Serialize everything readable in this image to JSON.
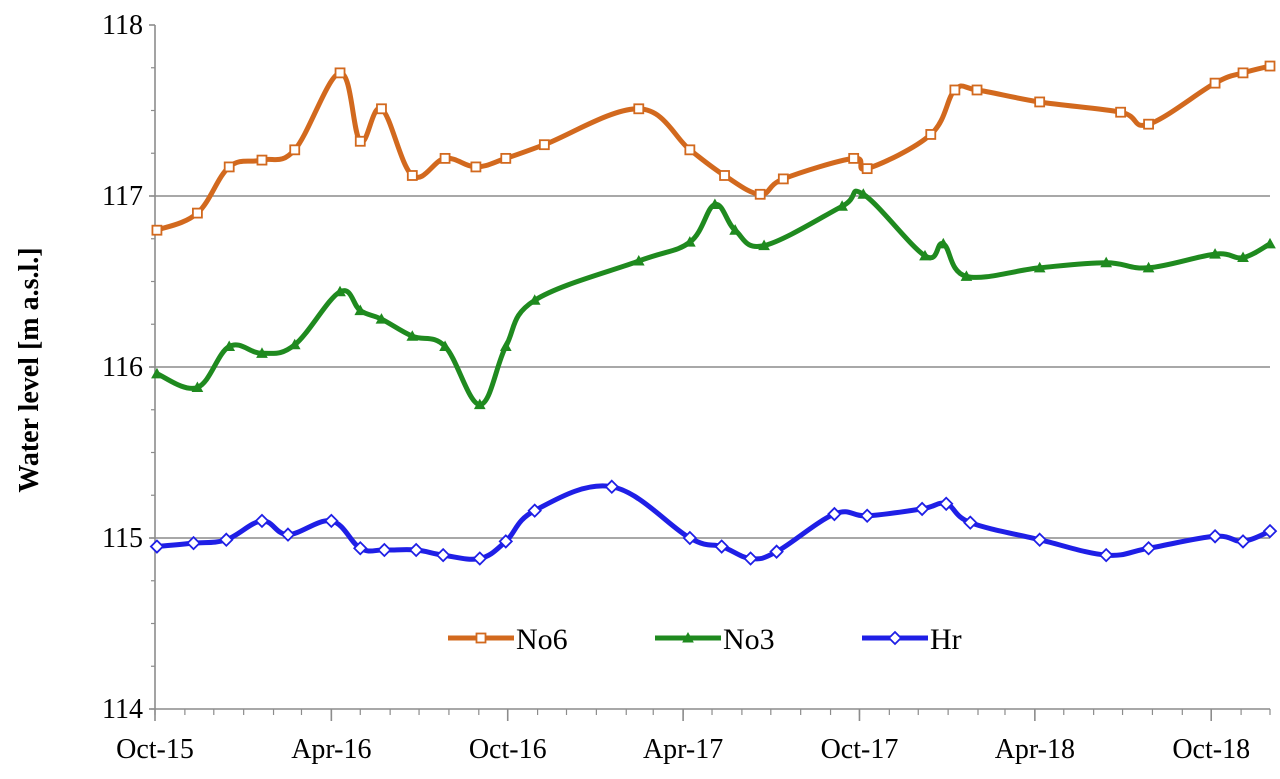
{
  "chart_data": {
    "type": "line",
    "title": "",
    "xlabel": "",
    "ylabel": "Water level [m a.s.l.]",
    "ylim": [
      114,
      118
    ],
    "xlim": [
      "2015-10-01",
      "2018-12-01"
    ],
    "yticks": [
      "114",
      "115",
      "116",
      "117",
      "118"
    ],
    "xticks": [
      {
        "date": "2015-10-01",
        "label": "Oct-15"
      },
      {
        "date": "2016-04-01",
        "label": "Apr-16"
      },
      {
        "date": "2016-10-01",
        "label": "Oct-16"
      },
      {
        "date": "2017-04-01",
        "label": "Apr-17"
      },
      {
        "date": "2017-10-01",
        "label": "Oct-17"
      },
      {
        "date": "2018-04-01",
        "label": "Apr-18"
      },
      {
        "date": "2018-10-01",
        "label": "Oct-18"
      }
    ],
    "grid": "horizontal",
    "legend": "bottom-center",
    "series": [
      {
        "name": "No6",
        "color": "#d2691e",
        "marker": "square",
        "x": [
          "2015-10-03",
          "2015-11-14",
          "2015-12-17",
          "2016-01-20",
          "2016-02-23",
          "2016-04-10",
          "2016-05-01",
          "2016-05-23",
          "2016-06-24",
          "2016-07-28",
          "2016-08-29",
          "2016-09-29",
          "2016-11-08",
          "2017-02-14",
          "2017-04-08",
          "2017-05-14",
          "2017-06-20",
          "2017-07-14",
          "2017-09-25",
          "2017-10-09",
          "2017-12-14",
          "2018-01-08",
          "2018-01-31",
          "2018-04-06",
          "2018-06-29",
          "2018-07-28",
          "2018-10-05",
          "2018-11-03",
          "2018-12-01"
        ],
        "y": [
          116.8,
          116.9,
          117.17,
          117.21,
          117.27,
          117.72,
          117.32,
          117.51,
          117.12,
          117.22,
          117.17,
          117.22,
          117.3,
          117.51,
          117.27,
          117.12,
          117.01,
          117.1,
          117.22,
          117.16,
          117.36,
          117.62,
          117.62,
          117.55,
          117.49,
          117.42,
          117.66,
          117.72,
          117.76
        ]
      },
      {
        "name": "No3",
        "color": "#1f8a1f",
        "marker": "triangle",
        "x": [
          "2015-10-03",
          "2015-11-14",
          "2015-12-17",
          "2016-01-20",
          "2016-02-23",
          "2016-04-10",
          "2016-05-01",
          "2016-05-23",
          "2016-06-24",
          "2016-07-28",
          "2016-09-02",
          "2016-09-29",
          "2016-10-29",
          "2017-02-14",
          "2017-04-08",
          "2017-05-04",
          "2017-05-25",
          "2017-06-24",
          "2017-09-13",
          "2017-10-05",
          "2017-12-08",
          "2017-12-27",
          "2018-01-20",
          "2018-04-06",
          "2018-06-14",
          "2018-07-28",
          "2018-10-05",
          "2018-11-03",
          "2018-12-01"
        ],
        "y": [
          115.96,
          115.88,
          116.12,
          116.08,
          116.13,
          116.44,
          116.33,
          116.28,
          116.18,
          116.12,
          115.78,
          116.12,
          116.39,
          116.62,
          116.73,
          116.95,
          116.8,
          116.71,
          116.94,
          117.01,
          116.65,
          116.72,
          116.53,
          116.58,
          116.61,
          116.58,
          116.66,
          116.64,
          116.72
        ]
      },
      {
        "name": "Hr",
        "color": "#1f1fe6",
        "marker": "diamond",
        "x": [
          "2015-10-03",
          "2015-11-10",
          "2015-12-14",
          "2016-01-20",
          "2016-02-16",
          "2016-04-01",
          "2016-05-01",
          "2016-05-26",
          "2016-06-28",
          "2016-07-26",
          "2016-09-02",
          "2016-09-29",
          "2016-10-29",
          "2017-01-17",
          "2017-04-08",
          "2017-05-11",
          "2017-06-10",
          "2017-07-07",
          "2017-09-05",
          "2017-10-09",
          "2017-12-05",
          "2017-12-30",
          "2018-01-24",
          "2018-04-06",
          "2018-06-14",
          "2018-07-28",
          "2018-10-05",
          "2018-11-03",
          "2018-12-01"
        ],
        "y": [
          114.95,
          114.97,
          114.99,
          115.1,
          115.02,
          115.1,
          114.94,
          114.93,
          114.93,
          114.9,
          114.88,
          114.98,
          115.16,
          115.3,
          115.0,
          114.95,
          114.88,
          114.92,
          115.14,
          115.13,
          115.17,
          115.2,
          115.09,
          114.99,
          114.9,
          114.94,
          115.01,
          114.98,
          115.04
        ]
      }
    ]
  }
}
